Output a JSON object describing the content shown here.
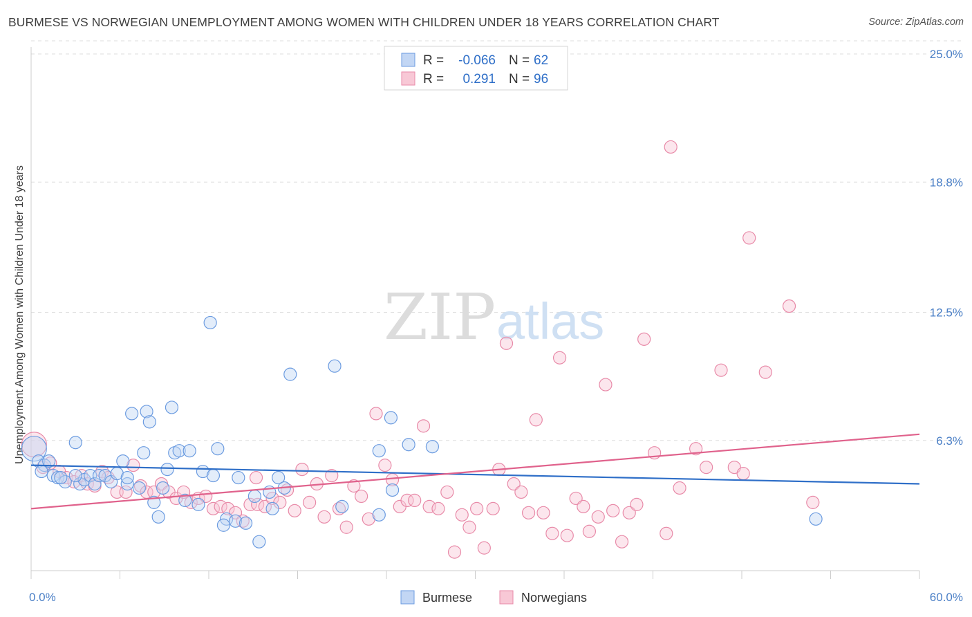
{
  "title": "BURMESE VS NORWEGIAN UNEMPLOYMENT AMONG WOMEN WITH CHILDREN UNDER 18 YEARS CORRELATION CHART",
  "source": "Source: ZipAtlas.com",
  "watermark": {
    "zip": "ZIP",
    "atlas": "atlas"
  },
  "legend_box": {
    "rows": [
      {
        "r_label": "R =",
        "r_value": "-0.066",
        "n_label": "N =",
        "n_value": "62"
      },
      {
        "r_label": "R =",
        "r_value": "0.291",
        "n_label": "N =",
        "n_value": "96"
      }
    ]
  },
  "chart_data": {
    "type": "scatter",
    "title": "BURMESE VS NORWEGIAN UNEMPLOYMENT AMONG WOMEN WITH CHILDREN UNDER 18 YEARS CORRELATION CHART",
    "xlabel": "",
    "ylabel": "Unemployment Among Women with Children Under 18 years",
    "xlim": [
      0,
      60
    ],
    "ylim": [
      0,
      25
    ],
    "x_tick_labels": [
      "0.0%",
      "60.0%"
    ],
    "y_ticks": [
      6.3,
      12.5,
      18.8,
      25.0
    ],
    "y_tick_labels": [
      "6.3%",
      "12.5%",
      "18.8%",
      "25.0%"
    ],
    "grid": "horizontal dashed",
    "legend_position": "bottom-center",
    "colors": {
      "burmese": "#6b9be0",
      "norwegians": "#e88aa8",
      "burmese_line": "#2f6fc8",
      "norwegians_line": "#e0628c"
    },
    "series": [
      {
        "name": "Burmese",
        "r": -0.066,
        "n": 62,
        "trend": {
          "x": [
            0,
            60
          ],
          "y": [
            5.1,
            4.2
          ]
        },
        "points": [
          [
            0.2,
            5.9
          ],
          [
            0.5,
            5.3
          ],
          [
            0.9,
            5.1
          ],
          [
            0.7,
            4.8
          ],
          [
            1.2,
            5.3
          ],
          [
            1.5,
            4.6
          ],
          [
            1.8,
            4.5
          ],
          [
            2.3,
            4.3
          ],
          [
            2.0,
            4.5
          ],
          [
            3.0,
            6.2
          ],
          [
            3.3,
            4.2
          ],
          [
            3.6,
            4.4
          ],
          [
            4.0,
            4.6
          ],
          [
            4.3,
            4.2
          ],
          [
            4.6,
            4.6
          ],
          [
            5.0,
            4.6
          ],
          [
            5.4,
            4.3
          ],
          [
            5.8,
            4.7
          ],
          [
            6.2,
            5.3
          ],
          [
            6.5,
            4.2
          ],
          [
            6.8,
            7.6
          ],
          [
            7.3,
            4.0
          ],
          [
            7.6,
            5.7
          ],
          [
            7.8,
            7.7
          ],
          [
            8.0,
            7.2
          ],
          [
            8.3,
            3.3
          ],
          [
            8.6,
            2.6
          ],
          [
            8.9,
            4.0
          ],
          [
            9.2,
            4.9
          ],
          [
            9.5,
            7.9
          ],
          [
            9.7,
            5.7
          ],
          [
            10.0,
            5.8
          ],
          [
            10.7,
            5.8
          ],
          [
            10.4,
            3.4
          ],
          [
            11.3,
            3.2
          ],
          [
            11.6,
            4.8
          ],
          [
            12.3,
            4.6
          ],
          [
            12.1,
            12.0
          ],
          [
            12.6,
            5.9
          ],
          [
            13.2,
            2.5
          ],
          [
            13.0,
            2.2
          ],
          [
            13.8,
            2.4
          ],
          [
            14.0,
            4.5
          ],
          [
            14.5,
            2.3
          ],
          [
            15.1,
            3.6
          ],
          [
            15.4,
            1.4
          ],
          [
            16.1,
            3.8
          ],
          [
            16.3,
            3.0
          ],
          [
            16.7,
            4.5
          ],
          [
            17.1,
            4.0
          ],
          [
            17.5,
            9.5
          ],
          [
            20.5,
            9.9
          ],
          [
            21.0,
            3.1
          ],
          [
            23.5,
            2.7
          ],
          [
            23.5,
            5.8
          ],
          [
            24.3,
            7.4
          ],
          [
            24.4,
            3.9
          ],
          [
            25.5,
            6.1
          ],
          [
            27.1,
            6.0
          ],
          [
            53.0,
            2.5
          ],
          [
            3.0,
            4.6
          ],
          [
            6.5,
            4.5
          ]
        ]
      },
      {
        "name": "Norwegians",
        "r": 0.291,
        "n": 96,
        "trend": {
          "x": [
            0,
            60
          ],
          "y": [
            3.0,
            6.6
          ]
        },
        "points": [
          [
            0.2,
            6.1
          ],
          [
            0.8,
            5.0
          ],
          [
            1.3,
            5.2
          ],
          [
            1.9,
            4.8
          ],
          [
            2.4,
            4.5
          ],
          [
            2.9,
            4.3
          ],
          [
            3.4,
            4.6
          ],
          [
            3.8,
            4.2
          ],
          [
            4.3,
            4.1
          ],
          [
            4.8,
            4.8
          ],
          [
            5.2,
            4.5
          ],
          [
            5.8,
            3.8
          ],
          [
            6.4,
            3.8
          ],
          [
            6.9,
            5.1
          ],
          [
            7.4,
            4.1
          ],
          [
            7.8,
            3.8
          ],
          [
            8.3,
            3.8
          ],
          [
            8.8,
            4.2
          ],
          [
            9.3,
            3.8
          ],
          [
            9.8,
            3.5
          ],
          [
            10.3,
            3.8
          ],
          [
            10.8,
            3.3
          ],
          [
            11.3,
            3.5
          ],
          [
            11.8,
            3.6
          ],
          [
            12.3,
            3.0
          ],
          [
            12.8,
            3.1
          ],
          [
            13.3,
            3.0
          ],
          [
            13.8,
            2.8
          ],
          [
            14.3,
            2.4
          ],
          [
            14.8,
            3.2
          ],
          [
            15.3,
            3.2
          ],
          [
            15.8,
            3.1
          ],
          [
            16.3,
            3.5
          ],
          [
            16.8,
            3.3
          ],
          [
            17.3,
            3.9
          ],
          [
            17.8,
            2.9
          ],
          [
            18.3,
            4.9
          ],
          [
            18.8,
            3.3
          ],
          [
            19.3,
            4.2
          ],
          [
            19.8,
            2.6
          ],
          [
            20.3,
            4.6
          ],
          [
            20.8,
            3.0
          ],
          [
            21.3,
            2.1
          ],
          [
            21.8,
            4.1
          ],
          [
            22.3,
            3.6
          ],
          [
            22.8,
            2.5
          ],
          [
            23.3,
            7.6
          ],
          [
            23.9,
            5.1
          ],
          [
            24.4,
            4.4
          ],
          [
            24.9,
            3.1
          ],
          [
            25.4,
            3.4
          ],
          [
            25.9,
            3.4
          ],
          [
            26.5,
            7.0
          ],
          [
            26.9,
            3.1
          ],
          [
            27.5,
            3.0
          ],
          [
            28.1,
            3.8
          ],
          [
            28.6,
            0.9
          ],
          [
            29.1,
            2.7
          ],
          [
            29.6,
            2.1
          ],
          [
            30.1,
            3.0
          ],
          [
            30.6,
            1.1
          ],
          [
            31.2,
            3.0
          ],
          [
            31.6,
            4.9
          ],
          [
            32.1,
            11.0
          ],
          [
            32.6,
            4.2
          ],
          [
            33.1,
            3.8
          ],
          [
            33.6,
            2.8
          ],
          [
            34.1,
            7.3
          ],
          [
            34.6,
            2.8
          ],
          [
            35.2,
            1.8
          ],
          [
            35.7,
            10.3
          ],
          [
            36.2,
            1.7
          ],
          [
            36.8,
            3.5
          ],
          [
            37.3,
            3.1
          ],
          [
            37.7,
            1.9
          ],
          [
            38.3,
            2.6
          ],
          [
            38.8,
            9.0
          ],
          [
            39.3,
            2.9
          ],
          [
            39.9,
            1.4
          ],
          [
            40.4,
            2.8
          ],
          [
            40.9,
            3.2
          ],
          [
            41.4,
            11.2
          ],
          [
            42.1,
            5.7
          ],
          [
            42.9,
            1.8
          ],
          [
            43.2,
            20.5
          ],
          [
            43.8,
            4.0
          ],
          [
            44.9,
            5.9
          ],
          [
            45.6,
            5.0
          ],
          [
            46.6,
            9.7
          ],
          [
            47.5,
            5.0
          ],
          [
            48.1,
            4.7
          ],
          [
            48.5,
            16.1
          ],
          [
            49.6,
            9.6
          ],
          [
            51.2,
            12.8
          ],
          [
            52.8,
            3.3
          ],
          [
            15.2,
            4.5
          ]
        ]
      }
    ]
  },
  "bottom_legend": [
    {
      "label": "Burmese"
    },
    {
      "label": "Norwegians"
    }
  ]
}
